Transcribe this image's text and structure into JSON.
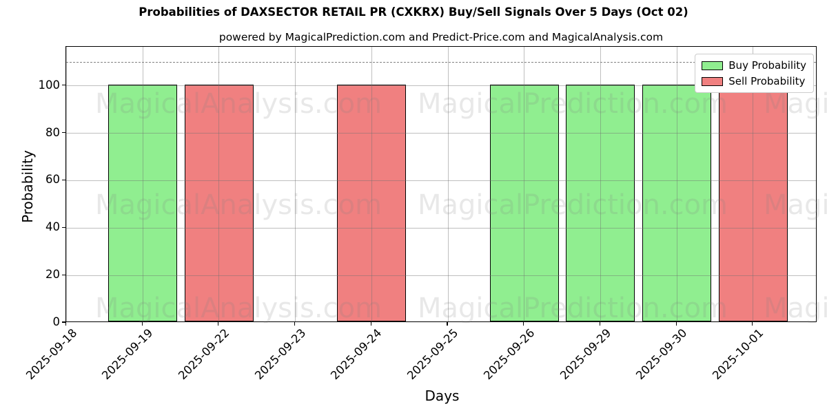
{
  "title": "Probabilities of DAXSECTOR RETAIL PR (CXKRX) Buy/Sell Signals Over 5 Days (Oct 02)",
  "subtitle": "powered by MagicalPrediction.com and Predict-Price.com and MagicalAnalysis.com",
  "legend": [
    {
      "label": "Buy Probability",
      "color": "#90ee90"
    },
    {
      "label": "Sell Probability",
      "color": "#f08080"
    }
  ],
  "watermark_columns": [
    "MagicalAnalysis.com",
    "MagicalPrediction.com",
    "MagicalAnalysis.com"
  ],
  "colors": {
    "buy": "#90ee90",
    "sell": "#f08080",
    "bar_edge": "#000000",
    "grid": "#b0b0b0",
    "dashed_line": "#7f7f7f",
    "watermark": "#808080",
    "background": "#ffffff"
  },
  "chart_data": {
    "type": "bar",
    "title": "Probabilities of DAXSECTOR RETAIL PR (CXKRX) Buy/Sell Signals Over 5 Days (Oct 02)",
    "xlabel": "Days",
    "ylabel": "Probability",
    "categories": [
      "2025-09-18",
      "2025-09-19",
      "2025-09-22",
      "2025-09-23",
      "2025-09-24",
      "2025-09-25",
      "2025-09-26",
      "2025-09-29",
      "2025-09-30",
      "2025-10-01"
    ],
    "series": [
      {
        "name": "Buy Probability",
        "color": "#90ee90",
        "values": [
          0,
          100,
          0,
          0,
          0,
          0,
          100,
          100,
          100,
          0
        ]
      },
      {
        "name": "Sell Probability",
        "color": "#f08080",
        "values": [
          0,
          0,
          100,
          0,
          100,
          0,
          0,
          0,
          0,
          100
        ]
      }
    ],
    "ylim": [
      0,
      116.5
    ],
    "y_ticks": [
      0,
      20,
      40,
      60,
      80,
      100
    ],
    "threshold_line_y": 110,
    "grid": true,
    "legend_position": "upper right"
  }
}
